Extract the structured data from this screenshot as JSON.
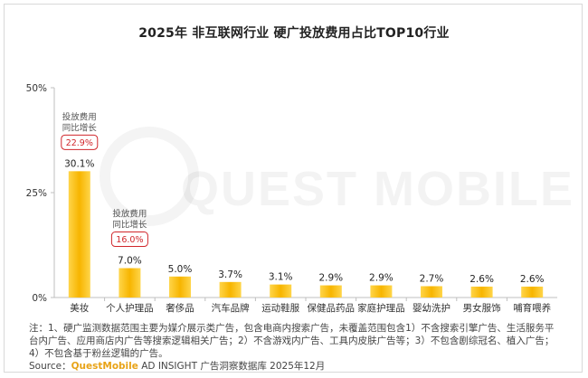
{
  "title": "2025年 非互联网行业 硬广投放费用占比TOP10行业",
  "chart_data": {
    "type": "bar",
    "categories": [
      "美妆",
      "个人护理品",
      "奢侈品",
      "汽车品牌",
      "运动鞋服",
      "保健品药品",
      "家庭护理品",
      "婴幼洗护",
      "男女服饰",
      "哺育喂养"
    ],
    "values": [
      30.1,
      7.0,
      5.0,
      3.7,
      3.1,
      2.9,
      2.9,
      2.7,
      2.6,
      2.6
    ],
    "value_labels": [
      "30.1%",
      "7.0%",
      "5.0%",
      "3.7%",
      "3.1%",
      "2.9%",
      "2.9%",
      "2.7%",
      "2.6%",
      "2.6%"
    ],
    "ylim": [
      0,
      50
    ],
    "yticks": [
      0,
      25,
      50
    ],
    "ytick_labels": [
      "0%",
      "25%",
      "50%"
    ],
    "grid": false,
    "bar_color": "#f7b500",
    "bar_color_light": "#ffd54a",
    "callouts": [
      {
        "category_index": 0,
        "label_line1": "投放费用",
        "label_line2": "同比增长",
        "value": "22.9%"
      },
      {
        "category_index": 1,
        "label_line1": "投放费用",
        "label_line2": "同比增长",
        "value": "16.0%"
      }
    ]
  },
  "note": "注：1、硬广监测数据范围主要为媒介展示类广告，包含电商内搜索广告，未覆盖范围包含1）不含搜索引擎广告、生活服务平台内广告、应用商店内广告等搜索逻辑相关广告；2）不含游戏内广告、工具内皮肤广告等；3）不包含剧综冠名、植入广告；4）不包含基于粉丝逻辑的广告。",
  "source": {
    "prefix": "Source：",
    "brand": "QuestMobile",
    "suffix": " AD INSIGHT 广告洞察数据库 2025年12月"
  },
  "watermark": "QUEST MOBILE",
  "colors": {
    "callout_border": "#d0262b",
    "axis": "#bfbfbf"
  }
}
